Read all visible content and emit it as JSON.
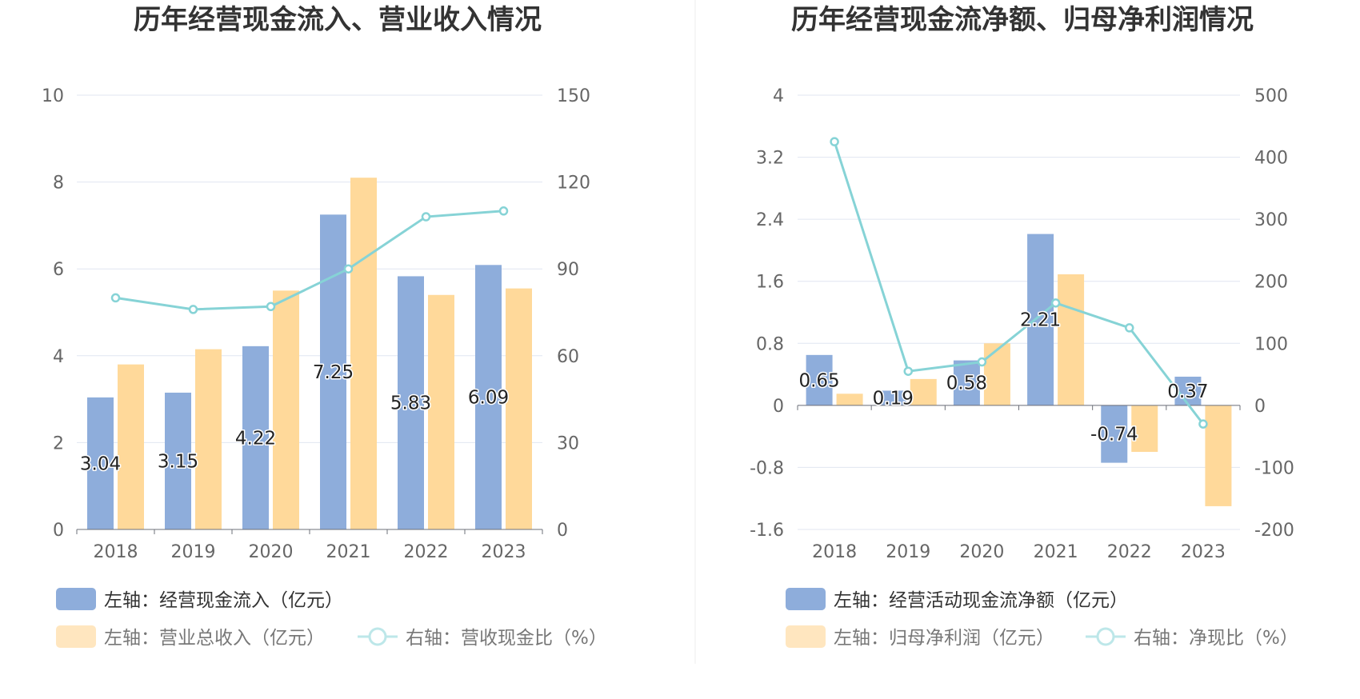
{
  "colors": {
    "bar_primary": "#8eaddb",
    "bar_secondary": "#ffd99a",
    "legend_secondary": "#ffe6bf",
    "line": "#86d3d6",
    "legend_line": "#bde7e9"
  },
  "chart_data": [
    {
      "type": "bar",
      "title": "历年经营现金流入、营业收入情况",
      "categories": [
        "2018",
        "2019",
        "2020",
        "2021",
        "2022",
        "2023"
      ],
      "y_left": {
        "min": 0,
        "max": 10,
        "ticks": [
          "0",
          "2",
          "4",
          "6",
          "8",
          "10"
        ]
      },
      "y_right": {
        "min": 0,
        "max": 150,
        "ticks": [
          "0",
          "30",
          "60",
          "90",
          "120",
          "150"
        ]
      },
      "series": [
        {
          "name": "左轴：经营现金流入（亿元）",
          "kind": "bar",
          "axis": "left",
          "values": [
            3.04,
            3.15,
            4.22,
            7.25,
            5.83,
            6.09
          ],
          "labels": [
            "3.04",
            "3.15",
            "4.22",
            "7.25",
            "5.83",
            "6.09"
          ]
        },
        {
          "name": "左轴：营业总收入（亿元）",
          "kind": "bar",
          "axis": "left",
          "values": [
            3.8,
            4.15,
            5.5,
            8.1,
            5.4,
            5.55
          ]
        },
        {
          "name": "右轴：营收现金比（%）",
          "kind": "line",
          "axis": "right",
          "values": [
            80,
            76,
            77,
            90,
            108,
            110
          ]
        }
      ],
      "legend_position": "bottom",
      "grid": true
    },
    {
      "type": "bar",
      "title": "历年经营现金流净额、归母净利润情况",
      "categories": [
        "2018",
        "2019",
        "2020",
        "2021",
        "2022",
        "2023"
      ],
      "y_left": {
        "min": -1.6,
        "max": 4,
        "ticks": [
          "-1.6",
          "-0.8",
          "0",
          "0.8",
          "1.6",
          "2.4",
          "3.2",
          "4"
        ]
      },
      "y_right": {
        "min": -200,
        "max": 500,
        "ticks": [
          "-200",
          "-100",
          "0",
          "100",
          "200",
          "300",
          "400",
          "500"
        ]
      },
      "series": [
        {
          "name": "左轴：经营活动现金流净额（亿元）",
          "kind": "bar",
          "axis": "left",
          "values": [
            0.65,
            0.19,
            0.58,
            2.21,
            -0.74,
            0.37
          ],
          "labels": [
            "0.65",
            "0.19",
            "0.58",
            "2.21",
            "-0.74",
            "0.37"
          ]
        },
        {
          "name": "左轴：归母净利润（亿元）",
          "kind": "bar",
          "axis": "left",
          "values": [
            0.15,
            0.34,
            0.8,
            1.69,
            -0.6,
            -1.3
          ]
        },
        {
          "name": "右轴：净现比（%）",
          "kind": "line",
          "axis": "right",
          "values": [
            425,
            55,
            70,
            165,
            125,
            -30
          ]
        }
      ],
      "legend_position": "bottom",
      "grid": true
    }
  ]
}
